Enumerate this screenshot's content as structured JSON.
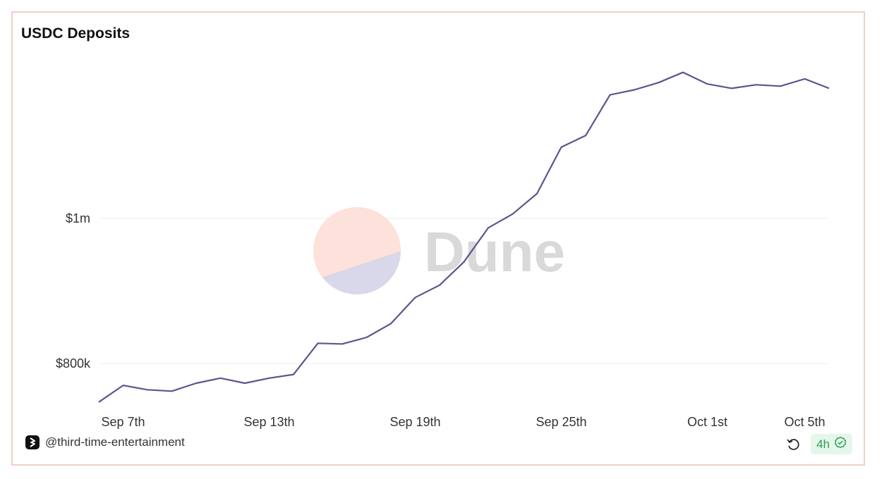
{
  "chart_data": {
    "type": "line",
    "title": "USDC Deposits",
    "xlabel": "",
    "ylabel": "",
    "x": [
      "Sep 6",
      "Sep 7",
      "Sep 8",
      "Sep 9",
      "Sep 10",
      "Sep 11",
      "Sep 12",
      "Sep 13",
      "Sep 14",
      "Sep 15",
      "Sep 16",
      "Sep 17",
      "Sep 18",
      "Sep 19",
      "Sep 20",
      "Sep 21",
      "Sep 22",
      "Sep 23",
      "Sep 24",
      "Sep 25",
      "Sep 26",
      "Sep 27",
      "Sep 28",
      "Sep 29",
      "Sep 30",
      "Oct 1",
      "Oct 2",
      "Oct 3",
      "Oct 4",
      "Oct 5",
      "Oct 6"
    ],
    "series": [
      {
        "values": [
          747000,
          770000,
          764000,
          762000,
          773000,
          780000,
          773000,
          780000,
          785000,
          828000,
          827000,
          836000,
          855000,
          891000,
          908000,
          940000,
          987000,
          1006000,
          1034000,
          1098000,
          1114000,
          1170000,
          1177000,
          1187000,
          1201000,
          1185000,
          1179000,
          1184000,
          1182000,
          1192000,
          1179000
        ]
      }
    ],
    "yticks": [
      {
        "value": 800000,
        "label": "$800k"
      },
      {
        "value": 1000000,
        "label": "$1m"
      }
    ],
    "xticks": [
      {
        "index": 1,
        "label": "Sep 7th"
      },
      {
        "index": 7,
        "label": "Sep 13th"
      },
      {
        "index": 13,
        "label": "Sep 19th"
      },
      {
        "index": 19,
        "label": "Sep 25th"
      },
      {
        "index": 25,
        "label": "Oct 1st"
      },
      {
        "index": 29,
        "label": "Oct 5th"
      }
    ],
    "ylim": [
      740000,
      1225000
    ],
    "grid": true,
    "line_color": "#5a5590"
  },
  "watermark": {
    "text": "Dune",
    "colors": {
      "top": "#fde1da",
      "bottom": "#d9d8ea",
      "text": "#d9d9d9"
    }
  },
  "footer": {
    "author": "@third-time-entertainment",
    "refresh_badge": "4h"
  },
  "colors": {
    "badge_green": "#2f9d56",
    "border": "#f2cfc6"
  }
}
